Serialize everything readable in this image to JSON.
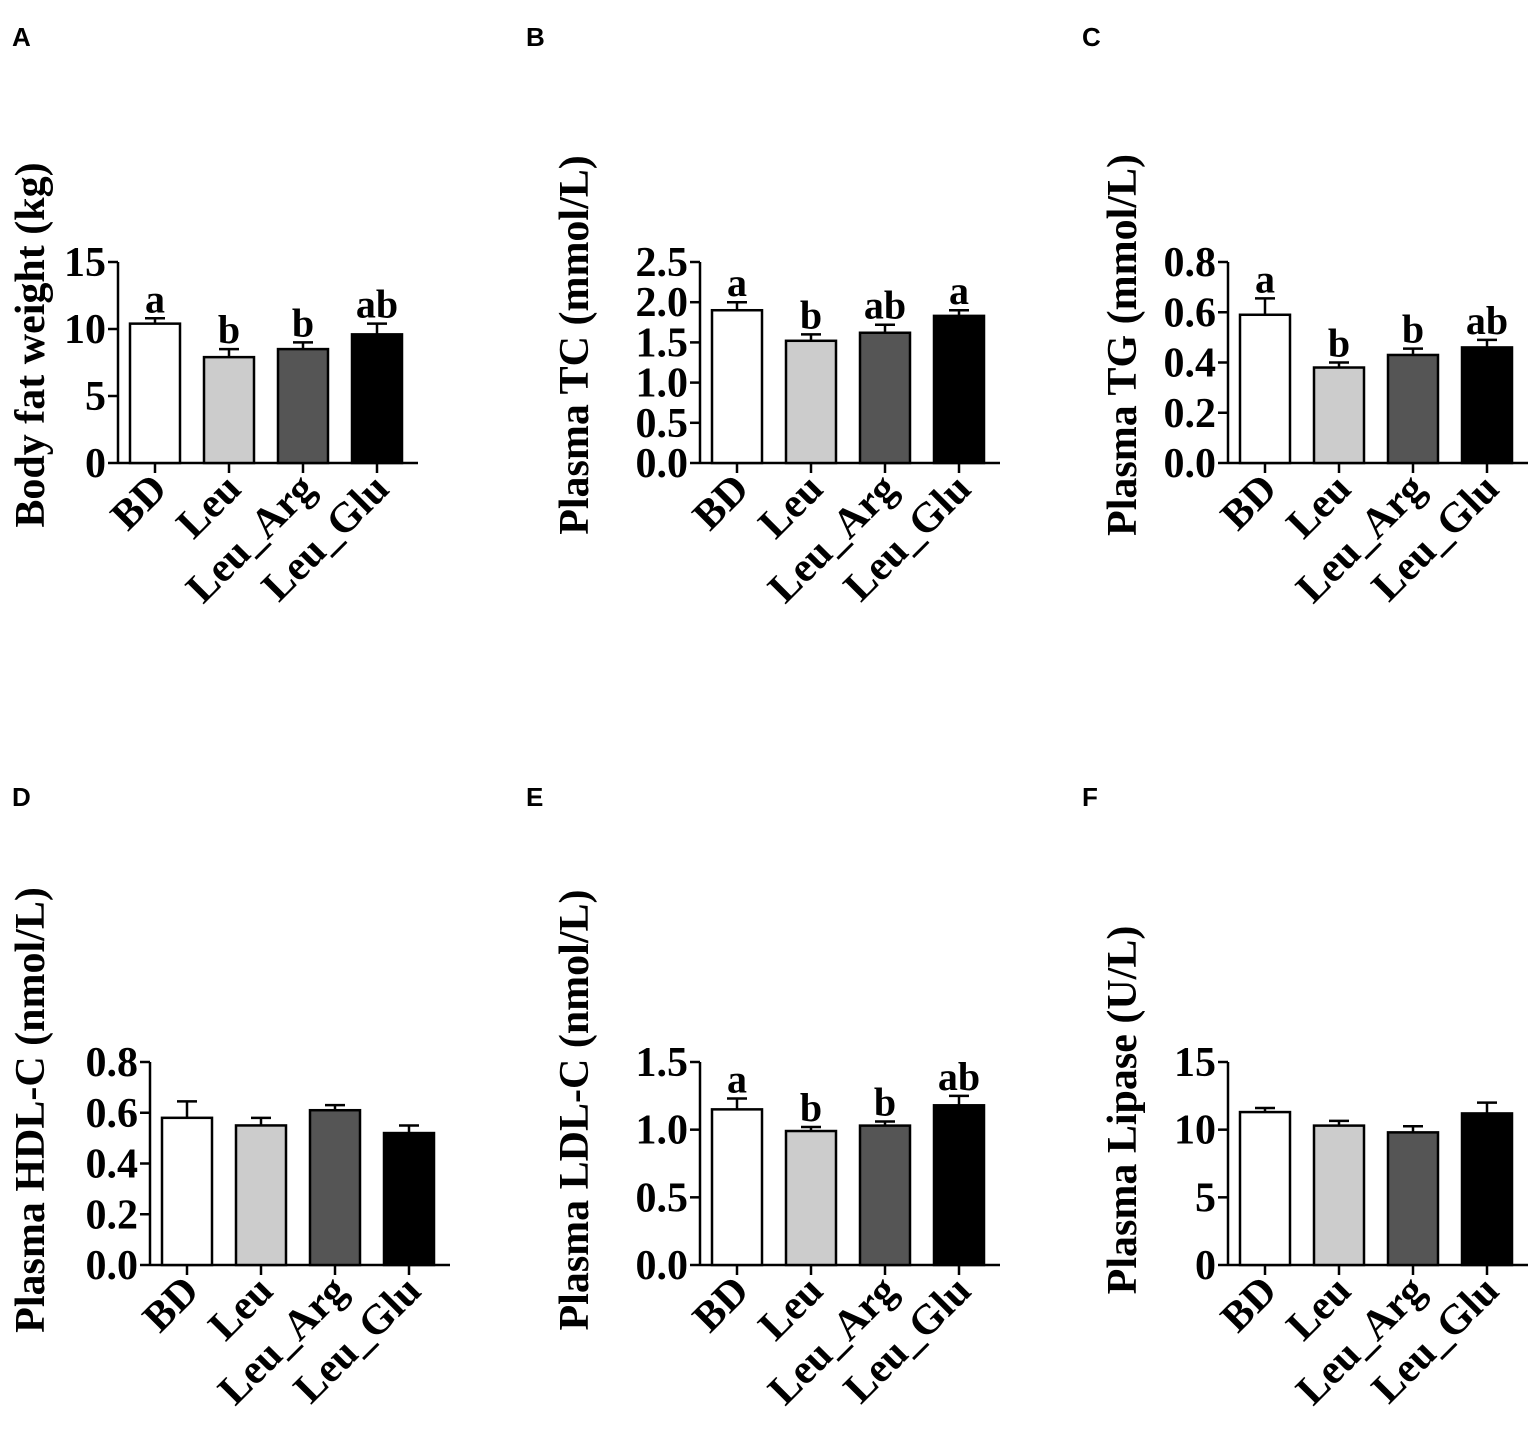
{
  "chart_data": [
    {
      "type": "bar",
      "panel": "A",
      "ylabel": "Body fat weight (kg)",
      "categories": [
        "BD",
        "Leu",
        "Leu_Arg",
        "Leu_Glu"
      ],
      "values": [
        10.4,
        7.9,
        8.5,
        9.6
      ],
      "errors": [
        0.4,
        0.6,
        0.5,
        0.8
      ],
      "significance": [
        "a",
        "b",
        "b",
        "ab"
      ],
      "ylim": [
        0,
        15
      ],
      "yticks": [
        "0",
        "5",
        "10",
        "15"
      ],
      "bar_colors": [
        "#ffffff",
        "#cccccc",
        "#555555",
        "#000000"
      ]
    },
    {
      "type": "bar",
      "panel": "B",
      "ylabel": "Plasma TC (mmol/L)",
      "categories": [
        "BD",
        "Leu",
        "Leu_Arg",
        "Leu_Glu"
      ],
      "values": [
        1.9,
        1.52,
        1.62,
        1.83
      ],
      "errors": [
        0.1,
        0.08,
        0.1,
        0.07
      ],
      "significance": [
        "a",
        "b",
        "ab",
        "a"
      ],
      "ylim": [
        0,
        2.5
      ],
      "yticks": [
        "0.0",
        "0.5",
        "1.0",
        "1.5",
        "2.0",
        "2.5"
      ],
      "bar_colors": [
        "#ffffff",
        "#cccccc",
        "#555555",
        "#000000"
      ]
    },
    {
      "type": "bar",
      "panel": "C",
      "ylabel": "Plasma TG (mmol/L)",
      "categories": [
        "BD",
        "Leu",
        "Leu_Arg",
        "Leu_Glu"
      ],
      "values": [
        0.59,
        0.38,
        0.43,
        0.46
      ],
      "errors": [
        0.065,
        0.02,
        0.025,
        0.03
      ],
      "significance": [
        "a",
        "b",
        "b",
        "ab"
      ],
      "ylim": [
        0,
        0.8
      ],
      "yticks": [
        "0.0",
        "0.2",
        "0.4",
        "0.6",
        "0.8"
      ],
      "bar_colors": [
        "#ffffff",
        "#cccccc",
        "#555555",
        "#000000"
      ]
    },
    {
      "type": "bar",
      "panel": "D",
      "ylabel": "Plasma HDL-C (nmol/L)",
      "categories": [
        "BD",
        "Leu",
        "Leu_Arg",
        "Leu_Glu"
      ],
      "values": [
        0.58,
        0.55,
        0.61,
        0.52
      ],
      "errors": [
        0.065,
        0.03,
        0.02,
        0.03
      ],
      "significance": [
        "",
        "",
        "",
        ""
      ],
      "ylim": [
        0,
        0.8
      ],
      "yticks": [
        "0.0",
        "0.2",
        "0.4",
        "0.6",
        "0.8"
      ],
      "bar_colors": [
        "#ffffff",
        "#cccccc",
        "#555555",
        "#000000"
      ]
    },
    {
      "type": "bar",
      "panel": "E",
      "ylabel": "Plasma LDL-C (nmol/L)",
      "categories": [
        "BD",
        "Leu",
        "Leu_Arg",
        "Leu_Glu"
      ],
      "values": [
        1.15,
        0.99,
        1.03,
        1.18
      ],
      "errors": [
        0.08,
        0.03,
        0.03,
        0.07
      ],
      "significance": [
        "a",
        "b",
        "b",
        "ab"
      ],
      "ylim": [
        0,
        1.5
      ],
      "yticks": [
        "0.0",
        "0.5",
        "1.0",
        "1.5"
      ],
      "bar_colors": [
        "#ffffff",
        "#cccccc",
        "#555555",
        "#000000"
      ]
    },
    {
      "type": "bar",
      "panel": "F",
      "ylabel": "Plasma Lipase (U/L)",
      "categories": [
        "BD",
        "Leu",
        "Leu_Arg",
        "Leu_Glu"
      ],
      "values": [
        11.3,
        10.3,
        9.8,
        11.2
      ],
      "errors": [
        0.3,
        0.35,
        0.45,
        0.8
      ],
      "significance": [
        "",
        "",
        "",
        ""
      ],
      "ylim": [
        0,
        15
      ],
      "yticks": [
        "0",
        "5",
        "10",
        "15"
      ],
      "bar_colors": [
        "#ffffff",
        "#cccccc",
        "#555555",
        "#000000"
      ]
    }
  ]
}
